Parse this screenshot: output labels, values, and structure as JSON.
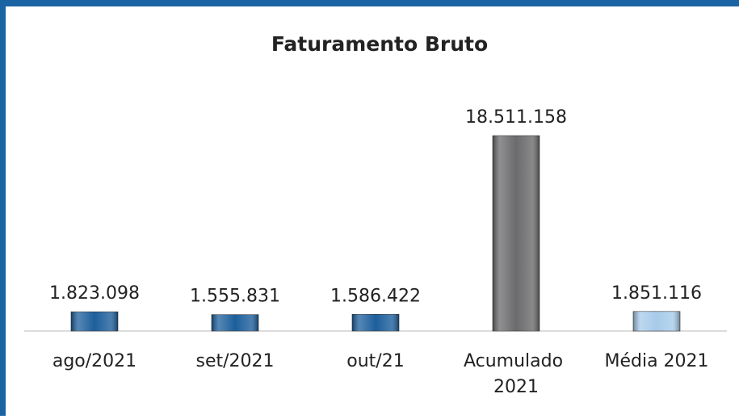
{
  "chart_data": {
    "type": "bar",
    "title": "Faturamento Bruto",
    "categories": [
      "ago/2021",
      "set/2021",
      "out/21",
      "Acumulado 2021",
      "Média 2021"
    ],
    "values": [
      1823098,
      1555831,
      1586422,
      18511158,
      1851116
    ],
    "value_labels": [
      "1.823.098",
      "1.555.831",
      "1.586.422",
      "18.511.158",
      "1.851.116"
    ],
    "colors": [
      "#1d5f9c",
      "#1d5f9c",
      "#1d5f9c",
      "#6b6b6d",
      "#a7cbea"
    ]
  }
}
